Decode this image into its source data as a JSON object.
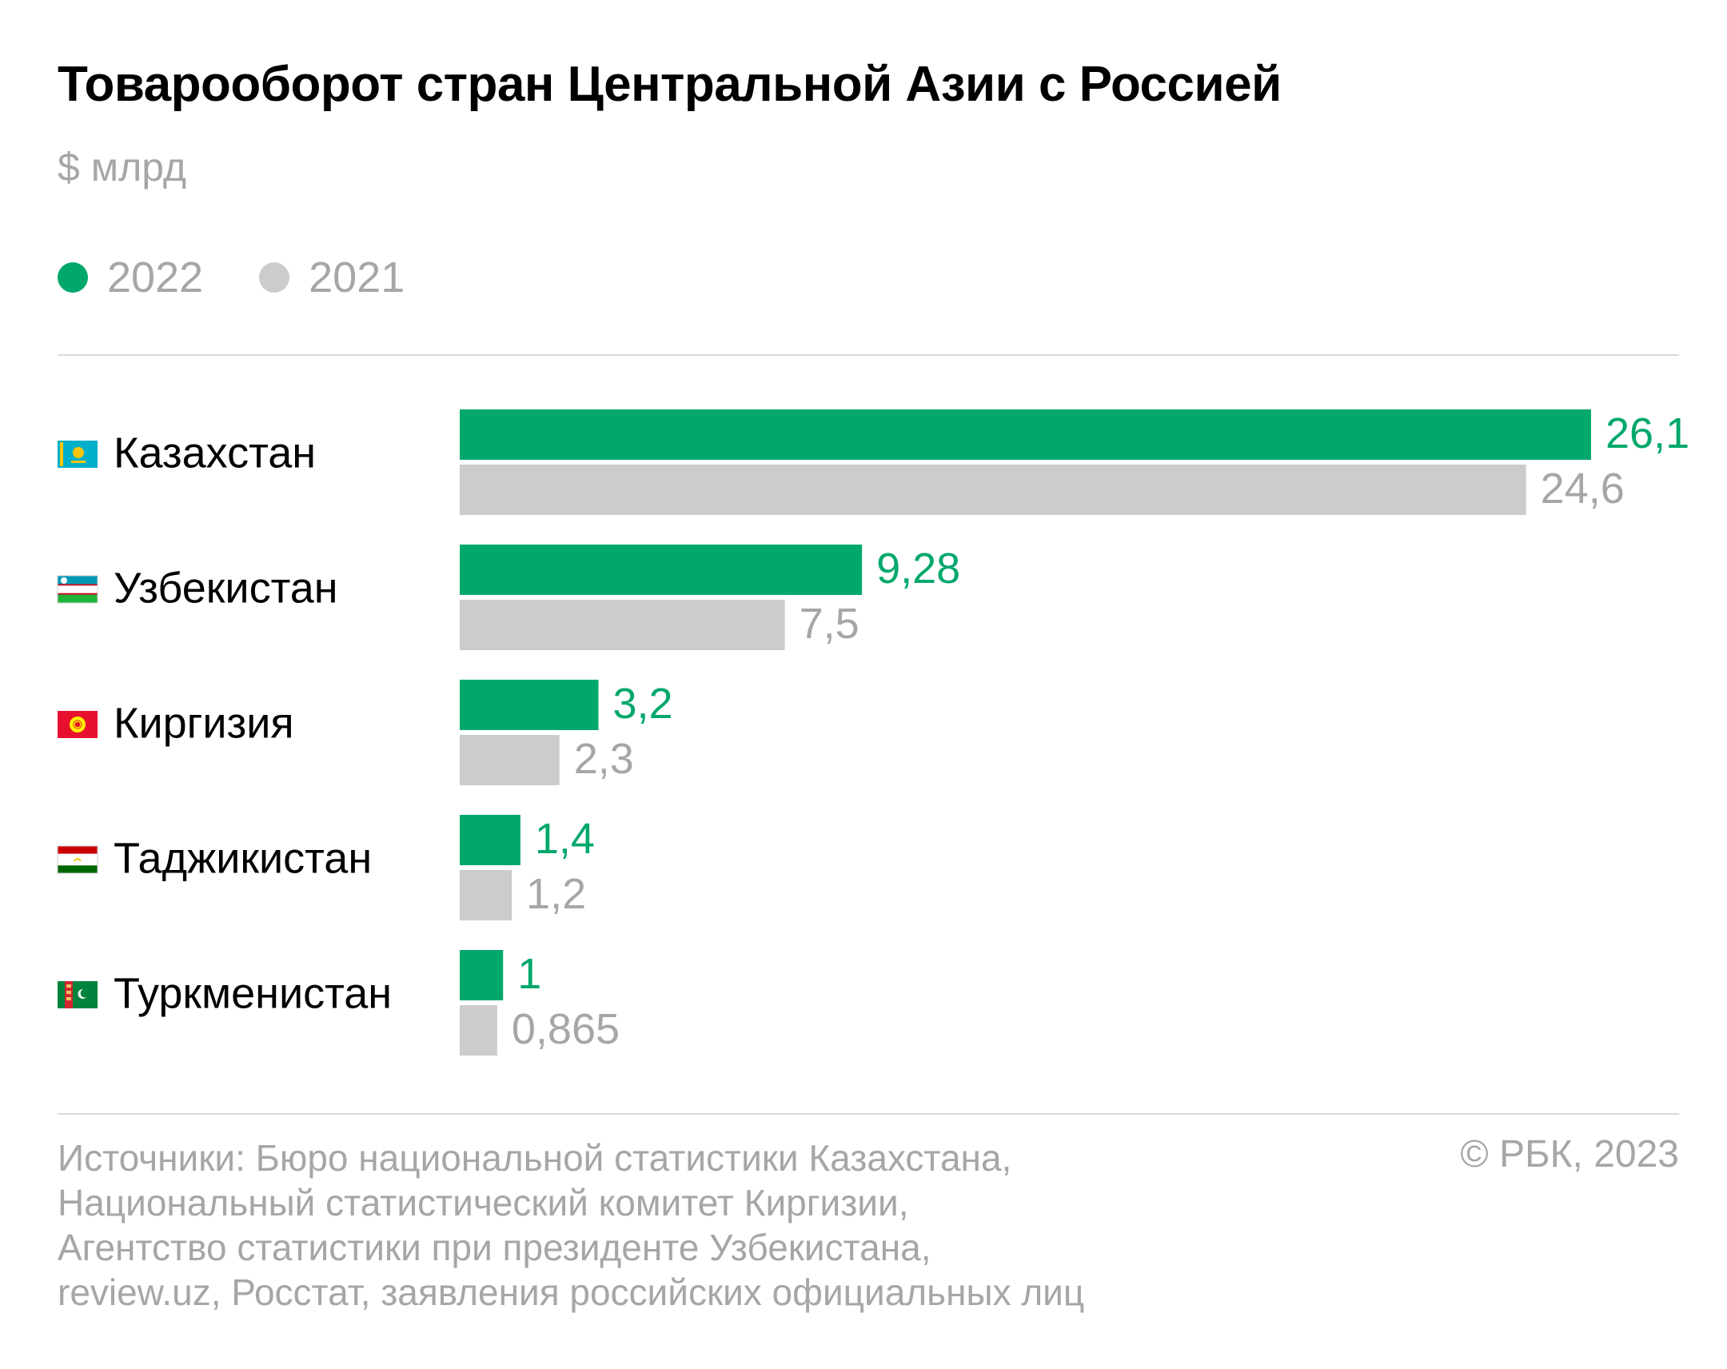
{
  "header": {
    "title": "Товарооборот стран Центральной Азии с Россией",
    "unit": "$ млрд"
  },
  "legend": [
    {
      "label": "2022",
      "color": "#00a86b"
    },
    {
      "label": "2021",
      "color": "#cccccc"
    }
  ],
  "footer": {
    "sources": [
      "Источники: Бюро национальной статистики Казахстана,",
      "Национальный статистический комитет Киргизии,",
      "Агентство статистики при президенте Узбекистана,",
      "review.uz, Росстат, заявления российских официальных лиц"
    ],
    "copyright": "© РБК, 2023"
  },
  "chart_data": {
    "type": "bar",
    "orientation": "horizontal",
    "title": "Товарооборот стран Центральной Азии с Россией",
    "subtitle": "$ млрд",
    "categories": [
      "Казахстан",
      "Узбекистан",
      "Киргизия",
      "Таджикистан",
      "Туркменистан"
    ],
    "flags": [
      "kz-flag-icon",
      "uz-flag-icon",
      "kg-flag-icon",
      "tj-flag-icon",
      "tm-flag-icon"
    ],
    "series": [
      {
        "name": "2022",
        "color": "#00a86b",
        "label_color": "#00a86b",
        "values": [
          26.1,
          9.28,
          3.2,
          1.4,
          1
        ],
        "labels": [
          "26,1",
          "9,28",
          "3,2",
          "1,4",
          "1"
        ]
      },
      {
        "name": "2021",
        "color": "#cccccc",
        "label_color": "#a6a6a6",
        "values": [
          24.6,
          7.5,
          2.3,
          1.2,
          0.865
        ],
        "labels": [
          "24,6",
          "7,5",
          "2,3",
          "1,2",
          "0,865"
        ]
      }
    ],
    "xlim": [
      0,
      26.1
    ],
    "grid": false,
    "legend_position": "top-left"
  }
}
